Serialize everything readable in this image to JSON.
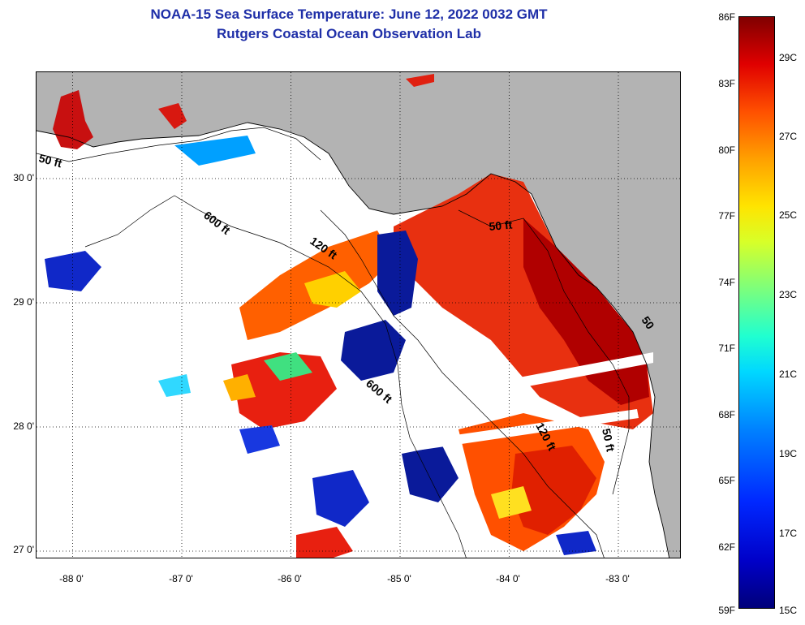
{
  "title": "NOAA-15 Sea Surface Temperature:  June 12, 2022 0032 GMT",
  "subtitle": "Rutgers Coastal Ocean Observation Lab",
  "axes": {
    "lon_ticks": [
      "-88 0'",
      "-87 0'",
      "-86 0'",
      "-85 0'",
      "-84 0'",
      "-83 0'"
    ],
    "lat_ticks": [
      "30 0'",
      "29 0'",
      "28 0'",
      "27 0'"
    ],
    "lon_range": [
      -88.35,
      -82.45
    ],
    "lat_range": [
      26.97,
      30.9
    ],
    "grid": "dotted"
  },
  "contours": [
    {
      "label": "50 ft"
    },
    {
      "label": "600 ft"
    },
    {
      "label": "120 ft"
    },
    {
      "label": "50 ft"
    },
    {
      "label": "600 ft"
    },
    {
      "label": "120 ft"
    },
    {
      "label": "50 ft"
    },
    {
      "label": "50"
    }
  ],
  "colorbar": {
    "fahrenheit": [
      "86F",
      "83F",
      "80F",
      "77F",
      "74F",
      "71F",
      "68F",
      "65F",
      "62F",
      "59F"
    ],
    "celsius": [
      "29C",
      "27C",
      "25C",
      "23C",
      "21C",
      "19C",
      "17C",
      "15C"
    ],
    "range_f": [
      59,
      86
    ]
  },
  "colors": {
    "land": "#b3b3b3",
    "title": "#1f2fa8",
    "warm": "#e01010",
    "hot": "#a00000",
    "cool": "#0a1a9a"
  }
}
